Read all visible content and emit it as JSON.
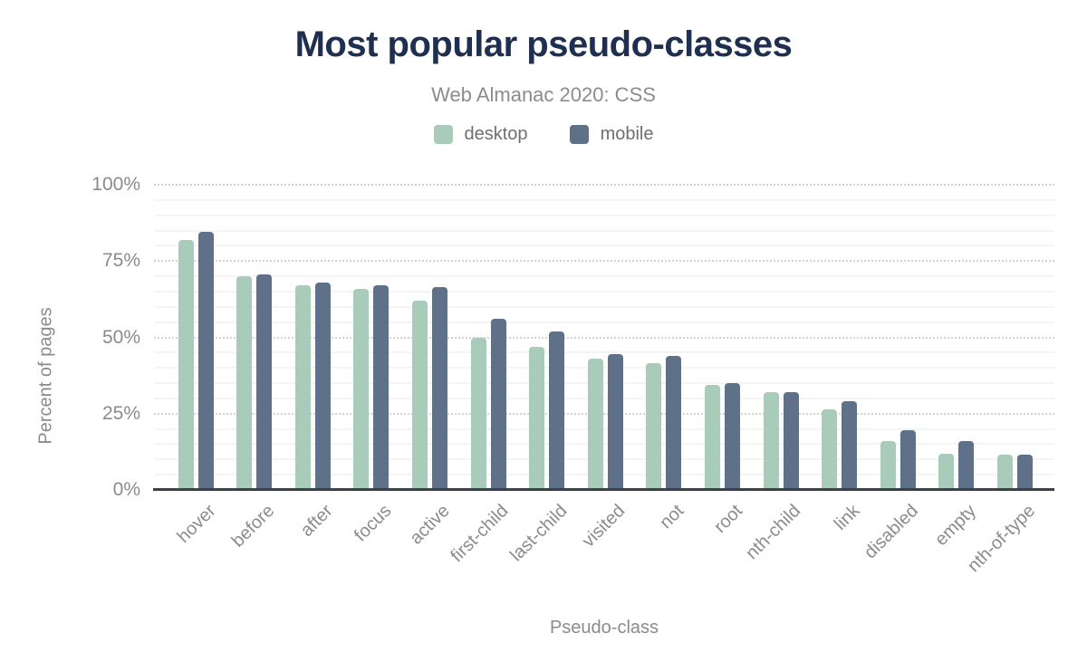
{
  "chart": {
    "title": "Most popular pseudo-classes",
    "subtitle": "Web Almanac 2020: CSS"
  },
  "chart_data": {
    "type": "bar",
    "title": "Most popular pseudo-classes",
    "subtitle": "Web Almanac 2020: CSS",
    "xlabel": "Pseudo-class",
    "ylabel": "Percent of pages",
    "ylim": [
      0,
      100
    ],
    "yticks": [
      0,
      25,
      50,
      75,
      100
    ],
    "ytick_labels": [
      "0%",
      "25%",
      "50%",
      "75%",
      "100%"
    ],
    "grid": {
      "major_dotted_every_pct": 25,
      "minor_solid_every_pct": 5
    },
    "legend_position": "top-center",
    "categories": [
      "hover",
      "before",
      "after",
      "focus",
      "active",
      "first-child",
      "last-child",
      "visited",
      "not",
      "root",
      "nth-child",
      "link",
      "disabled",
      "empty",
      "nth-of-type"
    ],
    "series": [
      {
        "name": "desktop",
        "color": "#a9cbba",
        "values": [
          82,
          70,
          67,
          66,
          62,
          50,
          47,
          43,
          41.5,
          34.5,
          32,
          26.5,
          16,
          12,
          11.5
        ]
      },
      {
        "name": "mobile",
        "color": "#5e7189",
        "values": [
          84.5,
          70.5,
          68,
          67,
          66.5,
          56,
          52,
          44.5,
          44,
          35,
          32,
          29,
          19.5,
          16,
          11.5
        ]
      }
    ]
  },
  "colors": {
    "title": "#1e2f4f",
    "subtitle": "#8c8c8c",
    "axis_text": "#8b8b8b",
    "legend_text": "#6f6f6f",
    "baseline": "#39414d",
    "grid_major": "#d2d2d2",
    "grid_minor": "#f4f4f6",
    "background": "#ffffff"
  }
}
